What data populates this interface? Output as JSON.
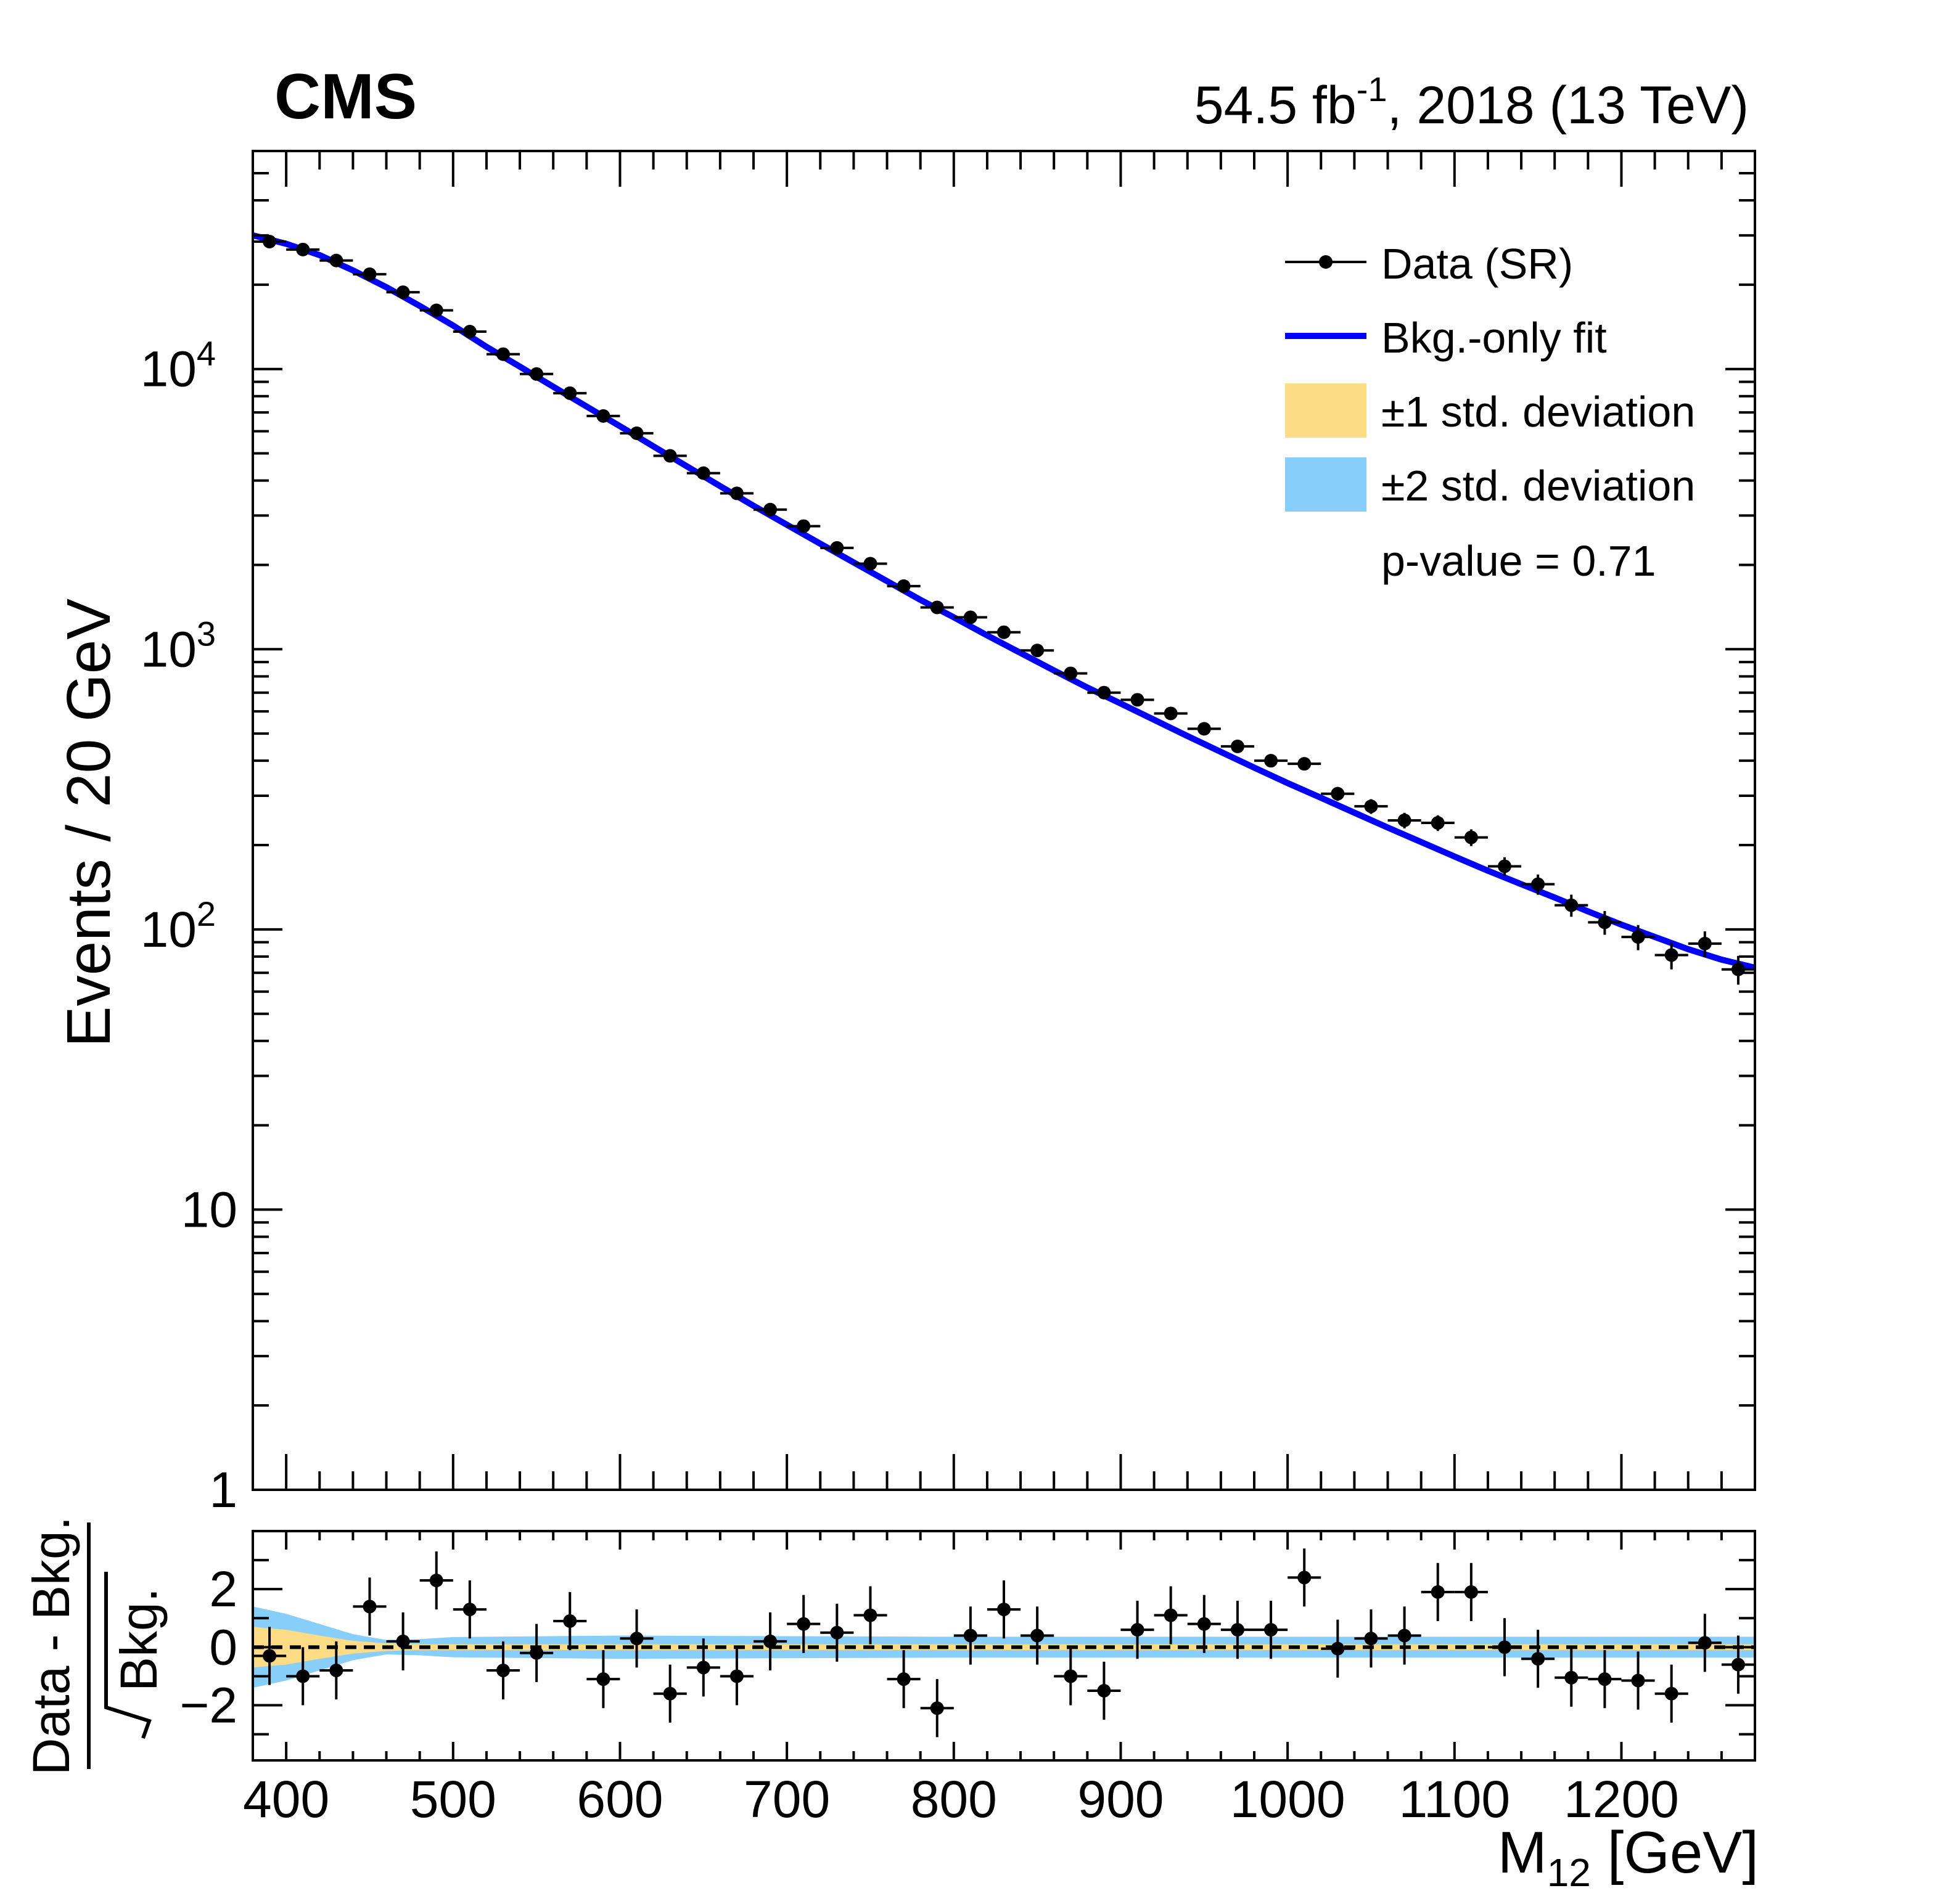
{
  "header": {
    "experiment": "CMS",
    "lumi_prefix": "54.5 fb",
    "lumi_exp": "-1",
    "lumi_suffix": ", 2018 (13 TeV)"
  },
  "legend": {
    "data": "Data (SR)",
    "fit": "Bkg.-only fit",
    "band1": "±1 std. deviation",
    "band2": "±2 std. deviation",
    "pvalue": "p-value = 0.71"
  },
  "colors": {
    "data": "#000000",
    "fit": "#0000ff",
    "band1": "#fddc86",
    "band2": "#87cefa"
  },
  "chart_data": [
    {
      "type": "scatter",
      "log_y": true,
      "ylabel": "Events / 20 GeV",
      "xlim": [
        380,
        1280
      ],
      "ylim": [
        1,
        60000
      ],
      "ytick_labels": [
        "1",
        "10",
        "10",
        "10",
        "10"
      ],
      "ytick_exps": [
        "",
        "",
        "2",
        "3",
        "4"
      ],
      "series": [
        {
          "name": "Data (SR)",
          "kind": "points",
          "x_halfwidth": 10,
          "x": [
            390,
            410,
            430,
            450,
            470,
            490,
            510,
            530,
            550,
            570,
            590,
            610,
            630,
            650,
            670,
            690,
            710,
            730,
            750,
            770,
            790,
            810,
            830,
            850,
            870,
            890,
            910,
            930,
            950,
            970,
            990,
            1010,
            1030,
            1050,
            1070,
            1090,
            1110,
            1130,
            1150,
            1170,
            1190,
            1210,
            1230,
            1250,
            1270
          ],
          "y": [
            28500,
            26700,
            24400,
            21800,
            18800,
            16200,
            13600,
            11300,
            9600,
            8200,
            6800,
            5900,
            4900,
            4250,
            3600,
            3150,
            2750,
            2300,
            2020,
            1680,
            1410,
            1300,
            1150,
            990,
            820,
            700,
            660,
            590,
            520,
            450,
            400,
            390,
            305,
            275,
            245,
            240,
            213,
            168,
            145,
            122,
            106,
            94,
            81,
            89,
            72
          ]
        },
        {
          "name": "Bkg.-only fit",
          "kind": "line",
          "x": [
            380,
            400,
            420,
            440,
            460,
            480,
            500,
            520,
            540,
            560,
            580,
            600,
            620,
            640,
            660,
            680,
            700,
            720,
            740,
            760,
            780,
            800,
            820,
            840,
            860,
            880,
            900,
            920,
            940,
            960,
            980,
            1000,
            1020,
            1040,
            1060,
            1080,
            1100,
            1120,
            1140,
            1160,
            1180,
            1200,
            1220,
            1240,
            1260,
            1280
          ],
          "y": [
            30000,
            28000,
            25500,
            22500,
            19600,
            16800,
            14300,
            12000,
            10200,
            8650,
            7350,
            6250,
            5300,
            4500,
            3820,
            3250,
            2780,
            2380,
            2040,
            1750,
            1500,
            1300,
            1120,
            970,
            840,
            730,
            640,
            560,
            490,
            430,
            378,
            333,
            295,
            261,
            231,
            205,
            182,
            162,
            145,
            130,
            116,
            104,
            94,
            85,
            78,
            73
          ]
        }
      ]
    },
    {
      "type": "scatter",
      "ylabel": "Data - Bkg. / √Bkg.",
      "ylabel_num": "Data - Bkg.",
      "ylabel_den": "Bkg.",
      "xlabel": "M",
      "xlabel_sub": "12",
      "xlabel_unit": " [GeV]",
      "xlim": [
        380,
        1280
      ],
      "ylim": [
        -3.9,
        4.0
      ],
      "xtick_labels": [
        "400",
        "500",
        "600",
        "700",
        "800",
        "900",
        "1000",
        "1100",
        "1200"
      ],
      "ytick_labels": [
        "−2",
        "0",
        "2"
      ],
      "bands": {
        "x": [
          380,
          400,
          420,
          440,
          460,
          480,
          500,
          600,
          700,
          800,
          900,
          1000,
          1100,
          1200,
          1280
        ],
        "one_sigma": [
          0.7,
          0.6,
          0.4,
          0.22,
          0.13,
          0.1,
          0.1,
          0.1,
          0.1,
          0.1,
          0.1,
          0.1,
          0.1,
          0.1,
          0.1
        ],
        "two_sigma": [
          1.4,
          1.15,
          0.8,
          0.45,
          0.25,
          0.28,
          0.35,
          0.4,
          0.38,
          0.36,
          0.36,
          0.36,
          0.36,
          0.36,
          0.36
        ]
      },
      "series": [
        {
          "name": "Data (SR)",
          "x": [
            390,
            410,
            430,
            450,
            470,
            490,
            510,
            530,
            550,
            570,
            590,
            610,
            630,
            650,
            670,
            690,
            710,
            730,
            750,
            770,
            790,
            810,
            830,
            850,
            870,
            890,
            910,
            930,
            950,
            970,
            990,
            1010,
            1030,
            1050,
            1070,
            1090,
            1110,
            1130,
            1150,
            1170,
            1190,
            1210,
            1230,
            1250,
            1270
          ],
          "y": [
            -0.3,
            -1.0,
            -0.8,
            1.4,
            0.2,
            2.3,
            1.3,
            -0.8,
            -0.2,
            0.9,
            -1.1,
            0.3,
            -1.6,
            -0.7,
            -1.0,
            0.2,
            0.8,
            0.5,
            1.1,
            -1.1,
            -2.1,
            0.4,
            1.3,
            0.4,
            -1.0,
            -1.5,
            0.6,
            1.1,
            0.8,
            0.6,
            0.6,
            2.4,
            -0.05,
            0.3,
            0.4,
            1.9,
            1.9,
            0.0,
            -0.4,
            -1.05,
            -1.1,
            -1.15,
            -1.6,
            0.15,
            -0.6
          ],
          "yerr": 1.0
        }
      ]
    }
  ]
}
